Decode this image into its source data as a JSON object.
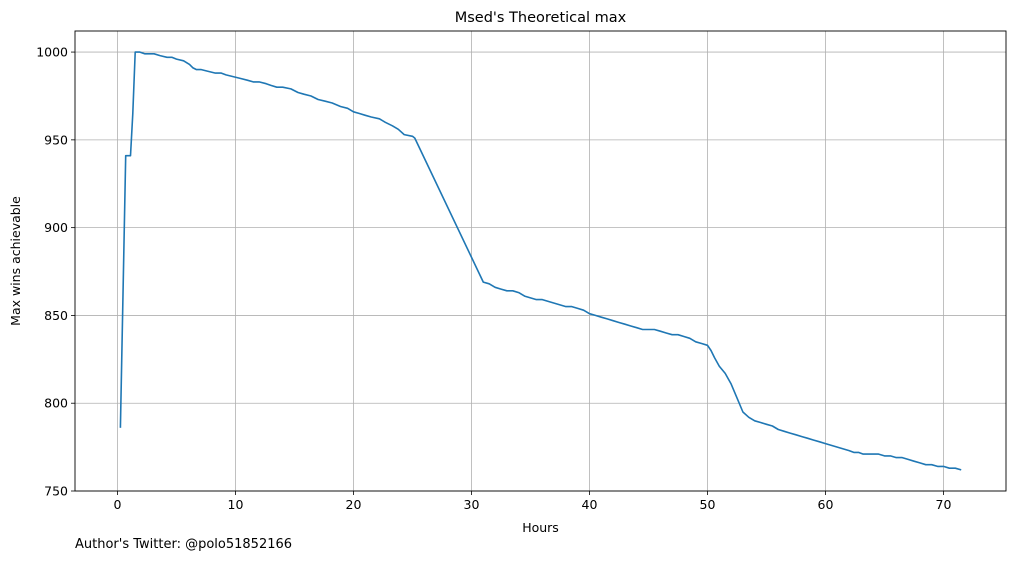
{
  "chart_data": {
    "type": "line",
    "title": "Msed's Theoretical max",
    "xlabel": "Hours",
    "ylabel": "Max wins achievable",
    "xlim": [
      -3.6,
      75.3
    ],
    "ylim": [
      750,
      1012
    ],
    "xticks": [
      0,
      10,
      20,
      30,
      40,
      50,
      60,
      70
    ],
    "yticks": [
      750,
      800,
      850,
      900,
      950,
      1000
    ],
    "grid": true,
    "series": [
      {
        "color": "#1f77b4",
        "x": [
          0.25,
          0.7,
          0.8,
          1.1,
          1.3,
          1.5,
          1.9,
          2.3,
          2.7,
          3.1,
          3.6,
          4.2,
          4.6,
          5.0,
          5.6,
          6.1,
          6.4,
          6.7,
          7.1,
          7.7,
          8.3,
          8.8,
          9.2,
          9.8,
          10.4,
          11.0,
          11.5,
          12.0,
          12.6,
          13.0,
          13.5,
          14.0,
          14.7,
          15.3,
          15.8,
          16.4,
          17.0,
          17.6,
          18.2,
          18.9,
          19.5,
          20.0,
          20.5,
          21.0,
          21.5,
          22.2,
          22.7,
          23.3,
          23.8,
          24.3,
          25.0,
          25.2,
          31.0,
          31.5,
          32.0,
          32.5,
          33.0,
          33.5,
          34.0,
          34.5,
          35.0,
          35.5,
          36.0,
          36.5,
          37.0,
          37.5,
          38.0,
          38.5,
          39.0,
          39.5,
          40.0,
          40.5,
          41.0,
          41.5,
          42.0,
          42.5,
          43.0,
          43.5,
          44.0,
          44.5,
          45.0,
          45.5,
          46.0,
          46.5,
          47.0,
          47.5,
          48.0,
          48.5,
          49.0,
          49.5,
          50.0,
          50.3,
          50.6,
          51.0,
          51.5,
          52.0,
          52.5,
          53.0,
          53.5,
          54.0,
          54.5,
          55.0,
          55.5,
          56.0,
          56.5,
          57.0,
          57.5,
          58.0,
          58.5,
          59.0,
          59.5,
          60.0,
          60.5,
          61.0,
          61.5,
          62.0,
          62.4,
          62.8,
          63.2,
          63.6,
          64.0,
          64.5,
          65.0,
          65.5,
          66.0,
          66.5,
          67.0,
          67.5,
          68.0,
          68.5,
          69.0,
          69.5,
          70.0,
          70.5,
          71.0,
          71.5
        ],
        "y": [
          786,
          941,
          941,
          941,
          965,
          1000,
          1000,
          999,
          999,
          999,
          998,
          997,
          997,
          996,
          995,
          993,
          991,
          990,
          990,
          989,
          988,
          988,
          987,
          986,
          985,
          984,
          983,
          983,
          982,
          981,
          980,
          980,
          979,
          977,
          976,
          975,
          973,
          972,
          971,
          969,
          968,
          966,
          965,
          964,
          963,
          962,
          960,
          958,
          956,
          953,
          952,
          951,
          869,
          868,
          866,
          865,
          864,
          864,
          863,
          861,
          860,
          859,
          859,
          858,
          857,
          856,
          855,
          855,
          854,
          853,
          851,
          850,
          849,
          848,
          847,
          846,
          845,
          844,
          843,
          842,
          842,
          842,
          841,
          840,
          839,
          839,
          838,
          837,
          835,
          834,
          833,
          830,
          826,
          821,
          817,
          811,
          803,
          795,
          792,
          790,
          789,
          788,
          787,
          785,
          784,
          783,
          782,
          781,
          780,
          779,
          778,
          777,
          776,
          775,
          774,
          773,
          772,
          772,
          771,
          771,
          771,
          771,
          770,
          770,
          769,
          769,
          768,
          767,
          766,
          765,
          765,
          764,
          764,
          763,
          763,
          762
        ]
      }
    ]
  },
  "footer": {
    "credit": "Author's Twitter: @polo51852166"
  }
}
